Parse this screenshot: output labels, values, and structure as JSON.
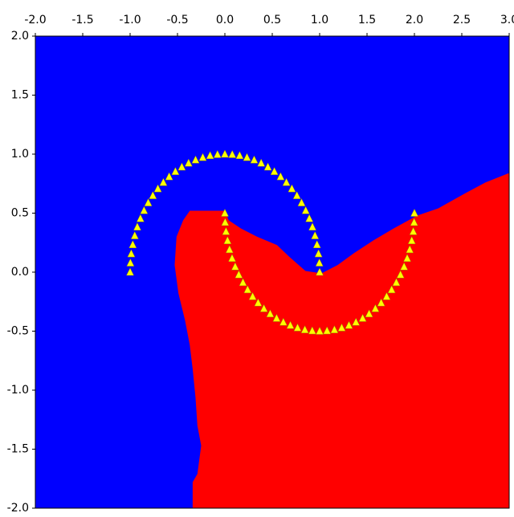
{
  "chart_data": {
    "type": "scatter",
    "background": "#0000ff",
    "region": {
      "color": "#ff0000",
      "x": [
        -0.34,
        -0.34,
        -0.29,
        -0.25,
        -0.29,
        -0.31,
        -0.34,
        -0.37,
        -0.42,
        -0.49,
        -0.53,
        -0.51,
        -0.44,
        -0.37,
        0,
        0.04,
        0.17,
        0.34,
        0.55,
        0.68,
        0.85,
        1.02,
        1.19,
        1.36,
        1.57,
        1.78,
        2.03,
        2.25,
        2.54,
        2.75,
        3.0,
        3.0
      ],
      "y": [
        -2.0,
        -1.78,
        -1.71,
        -1.47,
        -1.3,
        -1.06,
        -0.82,
        -0.62,
        -0.41,
        -0.18,
        0.06,
        0.3,
        0.44,
        0.52,
        0.52,
        0.44,
        0.37,
        0.3,
        0.23,
        0.13,
        0.01,
        -0.01,
        0.06,
        0.16,
        0.27,
        0.37,
        0.48,
        0.54,
        0.67,
        0.76,
        0.84,
        -2.0
      ]
    },
    "points": {
      "color": "#ffff00",
      "marker": "triangle",
      "x": [
        1,
        0.997,
        0.988,
        0.972,
        0.951,
        0.924,
        0.891,
        0.853,
        0.809,
        0.76,
        0.707,
        0.649,
        0.588,
        0.522,
        0.454,
        0.383,
        0.309,
        0.233,
        0.156,
        0.078,
        0,
        -0.078,
        -0.156,
        -0.233,
        -0.309,
        -0.383,
        -0.454,
        -0.522,
        -0.588,
        -0.649,
        -0.707,
        -0.76,
        -0.809,
        -0.853,
        -0.891,
        -0.924,
        -0.951,
        -0.972,
        -0.988,
        -0.997,
        -1,
        0,
        0.003,
        0.012,
        0.028,
        0.049,
        0.076,
        0.109,
        0.147,
        0.191,
        0.24,
        0.293,
        0.351,
        0.412,
        0.478,
        0.546,
        0.617,
        0.691,
        0.767,
        0.844,
        0.922,
        1,
        1.078,
        1.156,
        1.233,
        1.309,
        1.383,
        1.454,
        1.522,
        1.588,
        1.649,
        1.707,
        1.76,
        1.809,
        1.853,
        1.891,
        1.924,
        1.951,
        1.972,
        1.988,
        1.997,
        2
      ],
      "y": [
        0,
        0.078,
        0.156,
        0.233,
        0.309,
        0.383,
        0.454,
        0.522,
        0.588,
        0.649,
        0.707,
        0.76,
        0.809,
        0.853,
        0.891,
        0.924,
        0.951,
        0.972,
        0.988,
        0.997,
        1,
        0.997,
        0.988,
        0.972,
        0.951,
        0.924,
        0.891,
        0.853,
        0.809,
        0.76,
        0.707,
        0.649,
        0.588,
        0.522,
        0.454,
        0.383,
        0.309,
        0.233,
        0.156,
        0.078,
        0,
        0.5,
        0.422,
        0.344,
        0.267,
        0.191,
        0.117,
        0.046,
        -0.022,
        -0.088,
        -0.149,
        -0.207,
        -0.26,
        -0.309,
        -0.353,
        -0.391,
        -0.424,
        -0.451,
        -0.472,
        -0.488,
        -0.497,
        -0.5,
        -0.497,
        -0.488,
        -0.472,
        -0.451,
        -0.424,
        -0.391,
        -0.353,
        -0.309,
        -0.26,
        -0.207,
        -0.149,
        -0.088,
        -0.022,
        0.046,
        0.117,
        0.191,
        0.267,
        0.344,
        0.422,
        0.5
      ]
    },
    "xlim": [
      -2,
      3
    ],
    "ylim": [
      -2,
      2
    ],
    "xticks": [
      {
        "value": -2,
        "label": "-2.0"
      },
      {
        "value": -1.5,
        "label": "-1.5"
      },
      {
        "value": -1,
        "label": "-1.0"
      },
      {
        "value": -0.5,
        "label": "-0.5"
      },
      {
        "value": 0,
        "label": "0.0"
      },
      {
        "value": 0.5,
        "label": "0.5"
      },
      {
        "value": 1,
        "label": "1.0"
      },
      {
        "value": 1.5,
        "label": "1.5"
      },
      {
        "value": 2,
        "label": "2.0"
      },
      {
        "value": 2.5,
        "label": "2.5"
      },
      {
        "value": 3,
        "label": "3.0"
      }
    ],
    "yticks": [
      {
        "value": -2,
        "label": "-2.0"
      },
      {
        "value": -1.5,
        "label": "-1.5"
      },
      {
        "value": -1,
        "label": "-1.0"
      },
      {
        "value": -0.5,
        "label": "-0.5"
      },
      {
        "value": 0,
        "label": "0.0"
      },
      {
        "value": 0.5,
        "label": "0.5"
      },
      {
        "value": 1,
        "label": "1.0"
      },
      {
        "value": 1.5,
        "label": "1.5"
      },
      {
        "value": 2,
        "label": "2.0"
      }
    ]
  }
}
